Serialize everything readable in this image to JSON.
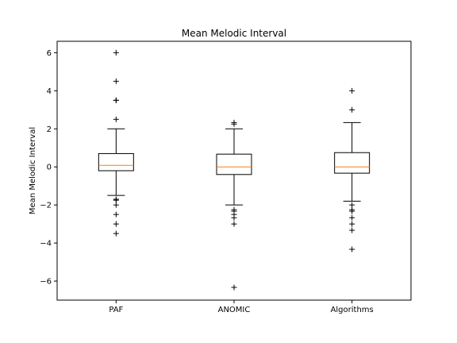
{
  "chart_data": {
    "type": "box",
    "title": "Mean Melodic Interval",
    "xlabel": "",
    "ylabel": "Mean Melodic Interval",
    "ylim": [
      -7,
      6.6
    ],
    "yticks": [
      "6",
      "4",
      "2",
      "0",
      "−2",
      "−4",
      "−6"
    ],
    "ytick_values": [
      6,
      4,
      2,
      0,
      -2,
      -4,
      -6
    ],
    "categories": [
      "PAF",
      "ANOMIC",
      "Algorithms"
    ],
    "grid": false,
    "colors": {
      "box": "#000000",
      "median": "#ff7f0e",
      "flier": "#000000"
    },
    "series": [
      {
        "category": "PAF",
        "whisker_low": -1.5,
        "q1": -0.2,
        "median": 0.08,
        "q3": 0.7,
        "whisker_high": 2.0,
        "fliers": [
          6.0,
          4.5,
          3.5,
          3.5,
          2.5,
          -1.7,
          -1.75,
          -2.0,
          -2.5,
          -3.0,
          -3.5
        ]
      },
      {
        "category": "ANOMIC",
        "whisker_low": -2.0,
        "q1": -0.4,
        "median": 0.0,
        "q3": 0.67,
        "whisker_high": 2.0,
        "fliers": [
          2.33,
          2.25,
          -2.25,
          -2.33,
          -2.5,
          -2.67,
          -3.0,
          -6.33
        ]
      },
      {
        "category": "Algorithms",
        "whisker_low": -1.8,
        "q1": -0.33,
        "median": 0.0,
        "q3": 0.75,
        "whisker_high": 2.33,
        "fliers": [
          4.0,
          3.0,
          -2.0,
          -2.25,
          -2.33,
          -2.67,
          -3.0,
          -3.33,
          -4.33
        ]
      }
    ]
  }
}
